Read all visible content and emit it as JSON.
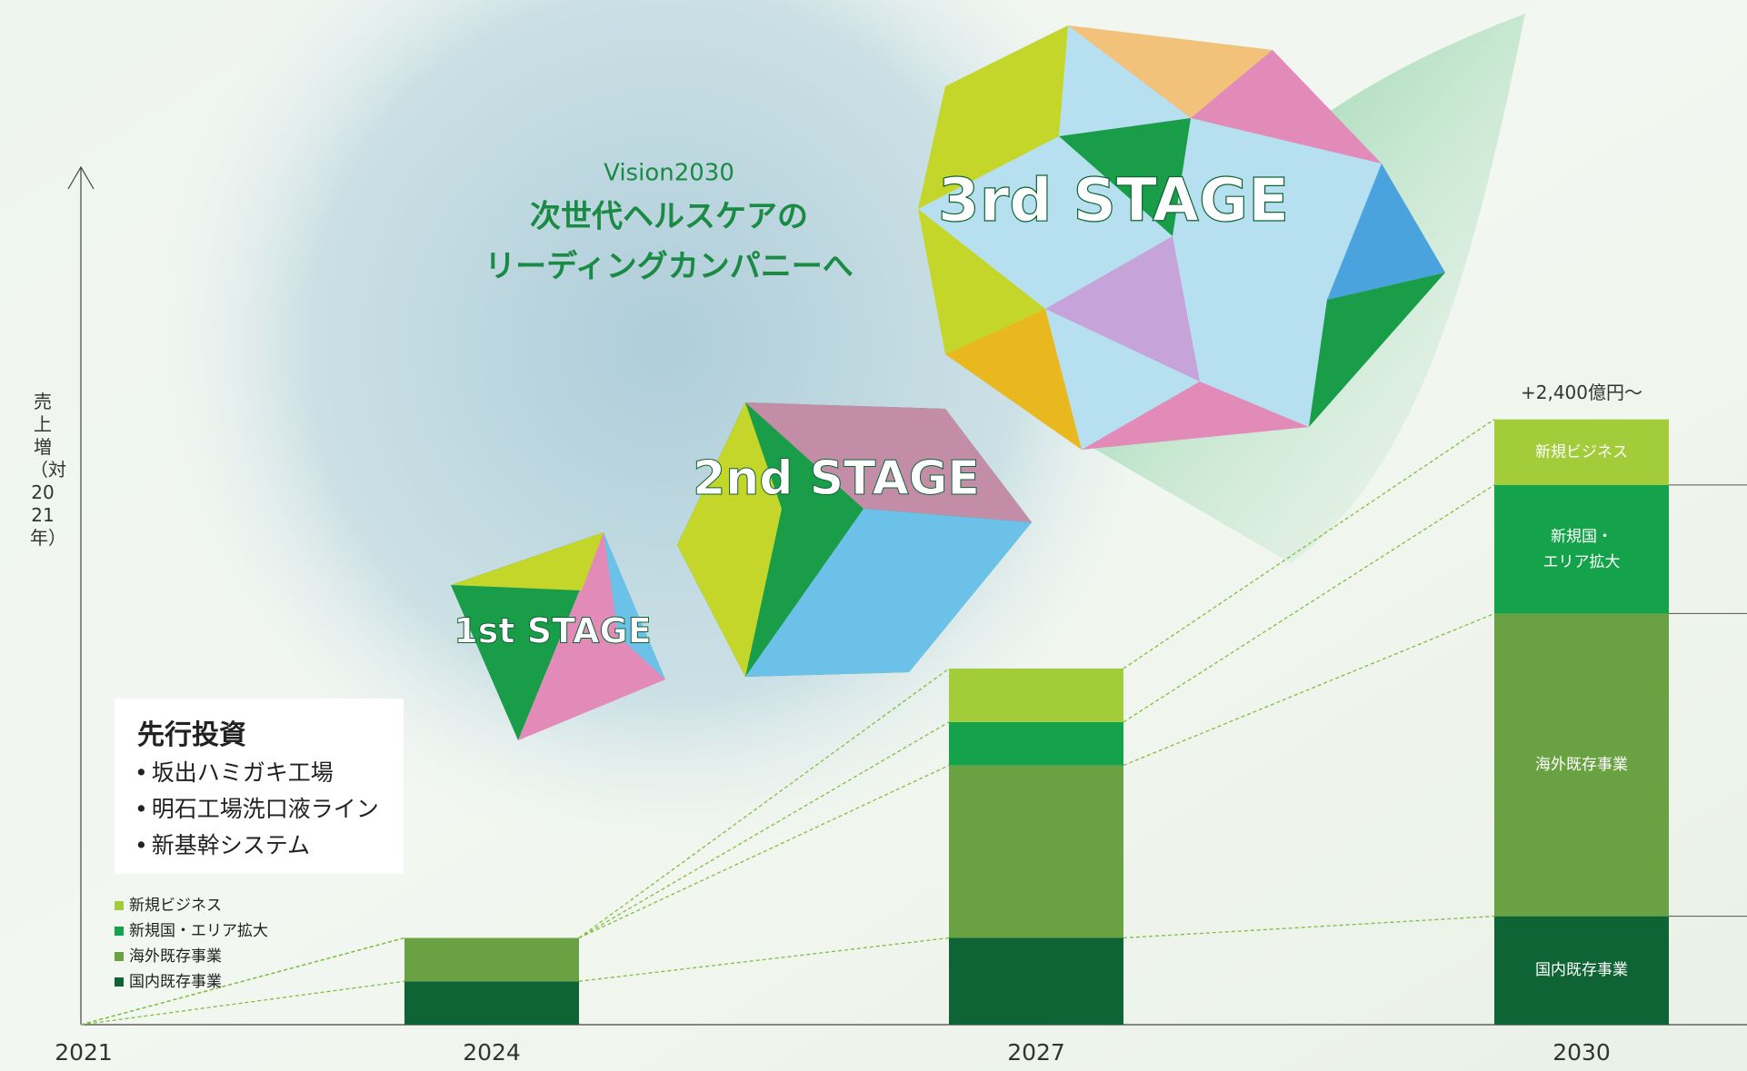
{
  "header": {
    "kicker": "Vision2030",
    "title_lines": [
      "次世代ヘルスケアの",
      "リーディングカンパニーへ"
    ]
  },
  "stages": [
    "1st STAGE",
    "2nd STAGE",
    "3rd STAGE"
  ],
  "investment_box": {
    "title": "先行投資",
    "items": [
      "坂出ハミガキ工場",
      "明石工場洗口液ライン",
      "新基幹システム"
    ]
  },
  "chart_data": {
    "type": "stacked_bar",
    "y_label": "売上増（対2021年）",
    "annotation": "+2,400億円〜",
    "categories": [
      "2021",
      "2024",
      "2027",
      "2030"
    ],
    "ylim": [
      0,
      3400
    ],
    "series": [
      {
        "name": "国内既存事業",
        "color": "#0e6434",
        "values": [
          0,
          172,
          344,
          430
        ]
      },
      {
        "name": "海外既存事業",
        "color": "#6aa142",
        "values": [
          0,
          172,
          684,
          1200
        ]
      },
      {
        "name": "新規国・エリア拡大",
        "color": "#14a34a",
        "values": [
          0,
          0,
          172,
          510
        ]
      },
      {
        "name": "新規ビジネス",
        "color": "#a2cc3a",
        "values": [
          0,
          0,
          212,
          260
        ]
      }
    ],
    "segment_labels": [
      "国内既存事業",
      "海外既存事業",
      "新規国・\nエリア拡大",
      "新規ビジネス"
    ]
  }
}
